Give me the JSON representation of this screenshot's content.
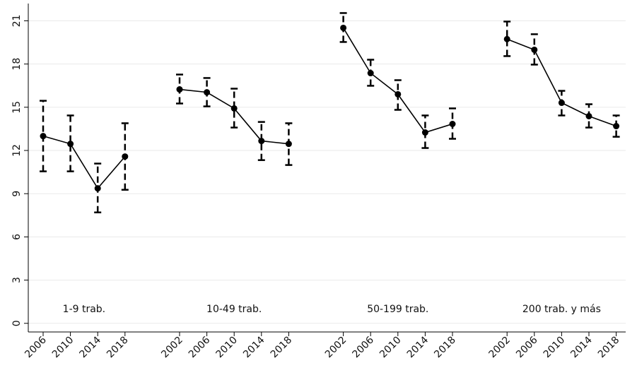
{
  "chart_data": {
    "type": "errorbar-line",
    "ylim": [
      -0.6,
      22.2
    ],
    "yticks": [
      0,
      3,
      6,
      9,
      12,
      15,
      18,
      21
    ],
    "grid": true,
    "color": "#000000",
    "groups": [
      {
        "name": "1-9 trab.",
        "categories": [
          "2006",
          "2010",
          "2014",
          "2018"
        ],
        "values": [
          13.0,
          12.46,
          9.37,
          11.58
        ],
        "lower": [
          10.55,
          10.55,
          7.7,
          9.27
        ],
        "upper": [
          15.45,
          14.43,
          11.09,
          13.89
        ]
      },
      {
        "name": "10-49 trab.",
        "categories": [
          "2002",
          "2006",
          "2010",
          "2014",
          "2018"
        ],
        "values": [
          16.24,
          16.04,
          14.92,
          12.66,
          12.46
        ],
        "lower": [
          15.26,
          15.06,
          13.59,
          11.33,
          10.99
        ],
        "upper": [
          17.27,
          17.03,
          16.29,
          13.98,
          13.89
        ]
      },
      {
        "name": "50-199 trab.",
        "categories": [
          "2002",
          "2006",
          "2010",
          "2014",
          "2018"
        ],
        "values": [
          20.51,
          17.37,
          15.9,
          13.25,
          13.84
        ],
        "lower": [
          19.53,
          16.49,
          14.82,
          12.17,
          12.81
        ],
        "upper": [
          21.54,
          18.3,
          16.88,
          14.43,
          14.92
        ]
      },
      {
        "name": "200 trab. y más",
        "categories": [
          "2002",
          "2006",
          "2010",
          "2014",
          "2018"
        ],
        "values": [
          19.73,
          18.99,
          15.31,
          14.38,
          13.69
        ],
        "lower": [
          18.55,
          17.96,
          14.43,
          13.59,
          12.95
        ],
        "upper": [
          20.95,
          20.07,
          16.14,
          15.21,
          14.43
        ]
      }
    ]
  }
}
